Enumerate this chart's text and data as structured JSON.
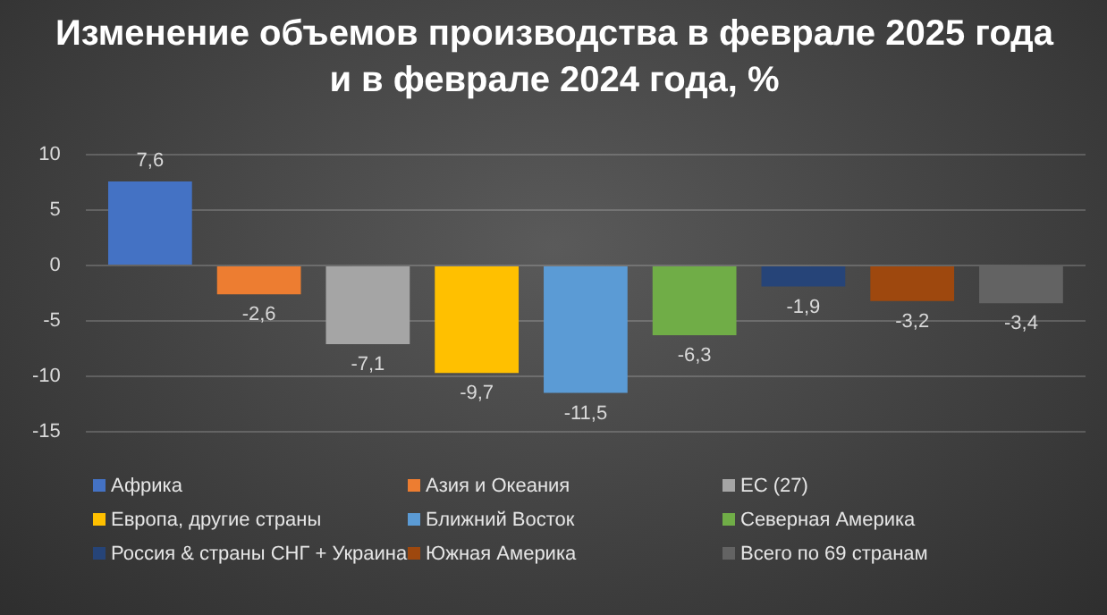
{
  "chart_data": {
    "type": "bar",
    "title": "Изменение объемов производства в феврале 2025 года и в феврале 2024 года, %",
    "categories": [
      null
    ],
    "series": [
      {
        "name": "Африка",
        "color": "#4472c4",
        "values": [
          7.6
        ],
        "value_labels": [
          "7,6"
        ]
      },
      {
        "name": "Азия и Океания",
        "color": "#ed7d31",
        "values": [
          -2.6
        ],
        "value_labels": [
          "-2,6"
        ]
      },
      {
        "name": "ЕС (27)",
        "color": "#a5a5a5",
        "values": [
          -7.1
        ],
        "value_labels": [
          "-7,1"
        ]
      },
      {
        "name": "Европа, другие страны",
        "color": "#ffc000",
        "values": [
          -9.7
        ],
        "value_labels": [
          "-9,7"
        ]
      },
      {
        "name": "Ближний Восток",
        "color": "#5b9bd5",
        "values": [
          -11.5
        ],
        "value_labels": [
          "-11,5"
        ]
      },
      {
        "name": "Северная Америка",
        "color": "#70ad47",
        "values": [
          -6.3
        ],
        "value_labels": [
          "-6,3"
        ]
      },
      {
        "name": "Россия & страны СНГ + Украина",
        "color": "#264478",
        "values": [
          -1.9
        ],
        "value_labels": [
          "-1,9"
        ]
      },
      {
        "name": "Южная Америка",
        "color": "#9e480e",
        "values": [
          -3.2
        ],
        "value_labels": [
          "-3,2"
        ]
      },
      {
        "name": "Всего по 69 странам",
        "color": "#636363",
        "values": [
          -3.4
        ],
        "value_labels": [
          "-3,4"
        ]
      }
    ],
    "ylim": [
      -15,
      10
    ],
    "yticks": [
      -15,
      -10,
      -5,
      0,
      5,
      10
    ],
    "grid": "y",
    "legend": "bottom"
  }
}
